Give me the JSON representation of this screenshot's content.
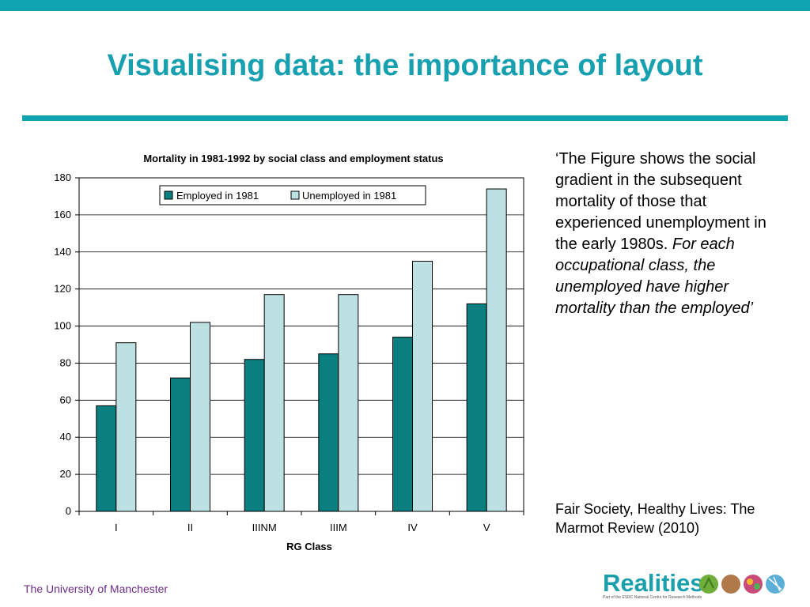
{
  "slide": {
    "title": "Visualising data: the importance of layout",
    "quote_plain": "‘The Figure shows the social gradient in the subsequent mortality of those that experienced unemployment in the early 1980s. ",
    "quote_italic": "For each occupational class, the unemployed have higher mortality than the employed’",
    "source": "Fair Society, Healthy Lives: The Marmot Review (2010)",
    "footer": "The University of Manchester",
    "logo_text": "Realities",
    "logo_subtext": "Part of the ESRC National Centre for Research Methods"
  },
  "colors": {
    "accent": "#10a3b0",
    "employed": "#0b7e80",
    "unemployed": "#bde0e2",
    "footer_text": "#6b2d87"
  },
  "chart_data": {
    "type": "bar",
    "title": "Mortality in 1981-1992 by social class and employment status",
    "xlabel": "RG Class",
    "ylabel": "",
    "categories": [
      "I",
      "II",
      "IIINM",
      "IIIM",
      "IV",
      "V"
    ],
    "series": [
      {
        "name": "Employed in 1981",
        "values": [
          57,
          72,
          82,
          85,
          94,
          112
        ]
      },
      {
        "name": "Unemployed in 1981",
        "values": [
          91,
          102,
          117,
          117,
          135,
          174
        ]
      }
    ],
    "ylim": [
      0,
      180
    ],
    "yticks": [
      0,
      20,
      40,
      60,
      80,
      100,
      120,
      140,
      160,
      180
    ],
    "grid": true,
    "legend": "top"
  }
}
